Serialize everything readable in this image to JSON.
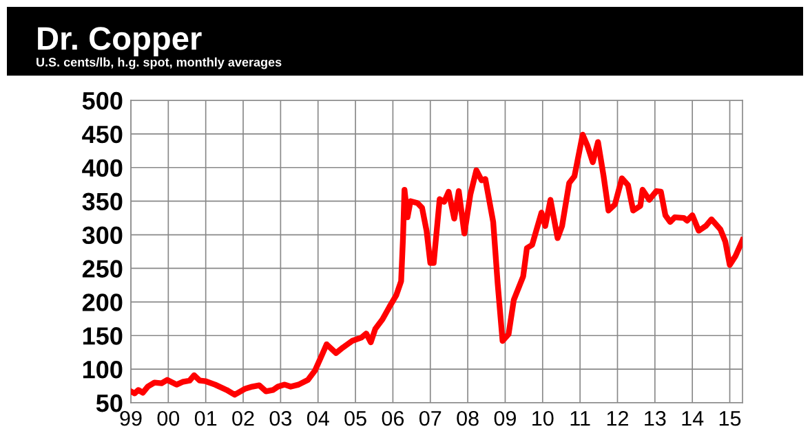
{
  "chart_data": {
    "type": "line",
    "title": "Dr. Copper",
    "subtitle": "U.S. cents/lb, h.g. spot, monthly averages",
    "x": [
      1999.0,
      1999.1,
      1999.2,
      1999.32,
      1999.45,
      1999.63,
      1999.82,
      1999.97,
      2000.22,
      2000.38,
      2000.57,
      2000.69,
      2000.84,
      2001.0,
      2001.25,
      2001.56,
      2001.77,
      2002.06,
      2002.24,
      2002.43,
      2002.61,
      2002.8,
      2002.93,
      2003.11,
      2003.27,
      2003.48,
      2003.73,
      2003.92,
      2004.08,
      2004.23,
      2004.48,
      2004.66,
      2004.91,
      2005.16,
      2005.29,
      2005.41,
      2005.53,
      2005.72,
      2005.91,
      2006.09,
      2006.22,
      2006.27,
      2006.31,
      2006.39,
      2006.47,
      2006.66,
      2006.78,
      2006.9,
      2007.0,
      2007.09,
      2007.25,
      2007.37,
      2007.49,
      2007.64,
      2007.76,
      2007.91,
      2008.07,
      2008.23,
      2008.37,
      2008.47,
      2008.68,
      2008.8,
      2008.93,
      2009.09,
      2009.23,
      2009.48,
      2009.58,
      2009.72,
      2009.97,
      2010.07,
      2010.21,
      2010.4,
      2010.52,
      2010.71,
      2010.85,
      2011.07,
      2011.2,
      2011.34,
      2011.48,
      2011.63,
      2011.76,
      2011.93,
      2012.12,
      2012.28,
      2012.42,
      2012.61,
      2012.67,
      2012.85,
      2013.04,
      2013.16,
      2013.28,
      2013.41,
      2013.53,
      2013.77,
      2013.86,
      2014.0,
      2014.17,
      2014.36,
      2014.51,
      2014.75,
      2014.88,
      2015.0,
      2015.15,
      2015.34
    ],
    "series": [
      {
        "color": "#ff0000",
        "values": [
          67,
          64,
          69,
          65,
          74,
          80,
          79,
          84,
          77,
          81,
          83,
          91,
          83,
          82,
          77,
          69,
          62,
          71,
          74,
          76,
          67,
          69,
          74,
          77,
          74,
          77,
          84,
          98,
          118,
          137,
          124,
          132,
          142,
          147,
          153,
          140,
          160,
          174,
          193,
          210,
          231,
          295,
          367,
          326,
          350,
          347,
          340,
          306,
          258,
          258,
          353,
          349,
          364,
          324,
          365,
          302,
          360,
          396,
          381,
          383,
          319,
          227,
          142,
          152,
          203,
          238,
          280,
          285,
          333,
          313,
          352,
          295,
          313,
          377,
          387,
          449,
          432,
          408,
          438,
          387,
          336,
          345,
          384,
          374,
          336,
          343,
          367,
          352,
          365,
          364,
          329,
          319,
          326,
          325,
          321,
          329,
          306,
          313,
          323,
          308,
          290,
          255,
          268,
          292
        ]
      }
    ],
    "xlim": [
      1999,
      2015.34
    ],
    "xticks": [
      {
        "value": 1999,
        "label": "99"
      },
      {
        "value": 2000,
        "label": "00"
      },
      {
        "value": 2001,
        "label": "01"
      },
      {
        "value": 2002,
        "label": "02"
      },
      {
        "value": 2003,
        "label": "03"
      },
      {
        "value": 2004,
        "label": "04"
      },
      {
        "value": 2005,
        "label": "05"
      },
      {
        "value": 2006,
        "label": "06"
      },
      {
        "value": 2007,
        "label": "07"
      },
      {
        "value": 2008,
        "label": "08"
      },
      {
        "value": 2009,
        "label": "09"
      },
      {
        "value": 2010,
        "label": "10"
      },
      {
        "value": 2011,
        "label": "11"
      },
      {
        "value": 2012,
        "label": "12"
      },
      {
        "value": 2013,
        "label": "13"
      },
      {
        "value": 2014,
        "label": "14"
      },
      {
        "value": 2015,
        "label": "15"
      }
    ],
    "ylim": [
      50,
      500
    ],
    "yticks": [
      50,
      100,
      150,
      200,
      250,
      300,
      350,
      400,
      450,
      500
    ],
    "grid": true,
    "marker": "none",
    "line_style": "solid"
  }
}
